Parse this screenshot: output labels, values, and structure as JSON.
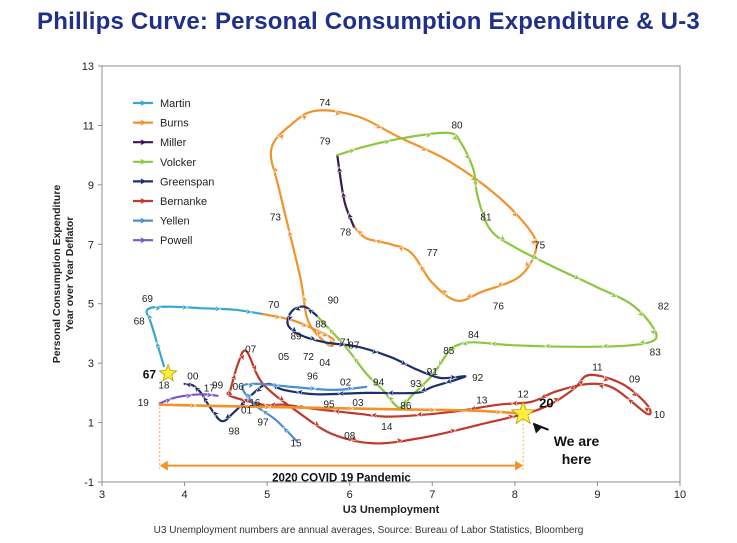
{
  "page": {
    "title": "Phillips Curve: Personal Consumption Expenditure & U-3",
    "source_note": "U3 Unemployment numbers are annual averages, Source: Bureau of Labor Statistics, Bloomberg"
  },
  "chart_data": {
    "type": "line",
    "title": "Phillips Curve: Personal Consumption Expenditure & U-3",
    "xlabel": "U3 Unemployment",
    "ylabel_lines": [
      "Personal Consumption Expenditure",
      "Year over Year Deflator"
    ],
    "xlim": [
      3,
      10
    ],
    "ylim": [
      -1,
      13
    ],
    "xticks": [
      3,
      4,
      5,
      6,
      7,
      8,
      9,
      10
    ],
    "yticks": [
      -1,
      1,
      3,
      5,
      7,
      9,
      11,
      13
    ],
    "legend_position": "top-left",
    "series": [
      {
        "name": "Martin",
        "color": "#3aa6cf",
        "points": [
          [
            3.75,
            2.9
          ],
          [
            3.6,
            4.3
          ],
          [
            3.55,
            4.8
          ],
          [
            3.8,
            4.9
          ],
          [
            4.2,
            4.85
          ],
          [
            4.6,
            4.8
          ],
          [
            4.95,
            4.65
          ]
        ]
      },
      {
        "name": "Burns",
        "color": "#f0932b",
        "points": [
          [
            4.95,
            4.65
          ],
          [
            5.3,
            4.45
          ],
          [
            5.6,
            4.1
          ],
          [
            5.8,
            3.8
          ],
          [
            5.75,
            3.6
          ],
          [
            5.5,
            4.4
          ],
          [
            5.4,
            5.9
          ],
          [
            5.15,
            8.8
          ],
          [
            5.05,
            10.2
          ],
          [
            5.3,
            11.05
          ],
          [
            5.6,
            11.5
          ],
          [
            6.1,
            11.3
          ],
          [
            6.6,
            10.6
          ],
          [
            7.2,
            9.8
          ],
          [
            7.8,
            8.6
          ],
          [
            8.2,
            7.4
          ],
          [
            8.25,
            6.75
          ],
          [
            8.05,
            5.9
          ],
          [
            7.6,
            5.4
          ],
          [
            7.3,
            5.1
          ],
          [
            7.0,
            5.7
          ],
          [
            6.75,
            6.7
          ],
          [
            6.5,
            7.0
          ],
          [
            6.2,
            7.2
          ],
          [
            6.05,
            7.6
          ]
        ]
      },
      {
        "name": "Miller",
        "color": "#3a1a52",
        "points": [
          [
            6.05,
            7.6
          ],
          [
            5.95,
            8.3
          ],
          [
            5.9,
            9.0
          ],
          [
            5.85,
            10.0
          ]
        ]
      },
      {
        "name": "Volcker",
        "color": "#8dc63f",
        "points": [
          [
            5.85,
            10.0
          ],
          [
            6.2,
            10.3
          ],
          [
            6.7,
            10.6
          ],
          [
            7.2,
            10.75
          ],
          [
            7.35,
            10.4
          ],
          [
            7.5,
            9.5
          ],
          [
            7.55,
            8.6
          ],
          [
            7.7,
            7.5
          ],
          [
            8.0,
            6.9
          ],
          [
            8.5,
            6.2
          ],
          [
            9.0,
            5.55
          ],
          [
            9.4,
            5.0
          ],
          [
            9.65,
            4.3
          ],
          [
            9.7,
            3.8
          ],
          [
            9.4,
            3.6
          ],
          [
            8.8,
            3.55
          ],
          [
            8.0,
            3.6
          ],
          [
            7.5,
            3.7
          ],
          [
            7.3,
            3.6
          ],
          [
            7.2,
            3.4
          ],
          [
            7.0,
            2.6
          ],
          [
            6.75,
            1.9
          ],
          [
            6.6,
            1.5
          ],
          [
            6.4,
            2.1
          ],
          [
            6.2,
            2.65
          ],
          [
            5.95,
            3.55
          ],
          [
            5.6,
            4.6
          ]
        ]
      },
      {
        "name": "Greenspan",
        "color": "#1c2f6b",
        "points": [
          [
            5.6,
            4.6
          ],
          [
            5.45,
            4.9
          ],
          [
            5.3,
            4.75
          ],
          [
            5.25,
            4.3
          ],
          [
            5.4,
            3.95
          ],
          [
            5.7,
            3.7
          ],
          [
            6.1,
            3.55
          ],
          [
            6.5,
            3.2
          ],
          [
            6.8,
            2.8
          ],
          [
            7.1,
            2.5
          ],
          [
            7.4,
            2.55
          ],
          [
            7.0,
            2.2
          ],
          [
            6.8,
            2.0
          ],
          [
            6.2,
            2.0
          ],
          [
            5.6,
            1.95
          ],
          [
            5.2,
            2.1
          ],
          [
            5.0,
            2.3
          ],
          [
            4.8,
            1.9
          ],
          [
            4.6,
            1.35
          ],
          [
            4.45,
            1.05
          ],
          [
            4.3,
            1.55
          ],
          [
            4.2,
            2.0
          ],
          [
            4.1,
            2.25
          ],
          [
            4.0,
            2.3
          ]
        ]
      },
      {
        "name": "Bernanke",
        "color": "#c0392b",
        "points": [
          [
            4.55,
            2.05
          ],
          [
            4.65,
            3.0
          ],
          [
            4.75,
            3.4
          ],
          [
            4.95,
            2.3
          ],
          [
            5.4,
            1.3
          ],
          [
            5.8,
            0.6
          ],
          [
            6.3,
            0.3
          ],
          [
            6.9,
            0.5
          ],
          [
            7.6,
            0.95
          ],
          [
            8.3,
            1.45
          ],
          [
            8.7,
            2.1
          ],
          [
            8.9,
            2.6
          ],
          [
            9.3,
            2.3
          ],
          [
            9.6,
            1.6
          ],
          [
            9.6,
            1.3
          ],
          [
            9.2,
            2.15
          ],
          [
            8.9,
            2.3
          ],
          [
            8.5,
            2.05
          ],
          [
            8.2,
            1.7
          ],
          [
            7.8,
            1.6
          ],
          [
            7.2,
            1.35
          ],
          [
            6.5,
            1.2
          ],
          [
            6.1,
            1.3
          ],
          [
            5.6,
            1.45
          ],
          [
            5.2,
            1.6
          ],
          [
            4.95,
            1.6
          ],
          [
            4.55,
            1.9
          ],
          [
            4.55,
            2.05
          ]
        ]
      },
      {
        "name": "Yellen",
        "color": "#4a8fd1",
        "points": [
          [
            5.35,
            0.4
          ],
          [
            5.1,
            1.1
          ],
          [
            4.85,
            1.6
          ],
          [
            4.7,
            2.2
          ],
          [
            4.9,
            2.3
          ],
          [
            5.3,
            2.2
          ],
          [
            5.8,
            2.1
          ],
          [
            6.2,
            2.2
          ]
        ]
      },
      {
        "name": "Powell",
        "color": "#7e57c2",
        "points": [
          [
            3.7,
            1.65
          ],
          [
            3.9,
            1.85
          ],
          [
            4.2,
            1.95
          ],
          [
            4.4,
            1.9
          ]
        ]
      },
      {
        "name": "2020 path",
        "color": "#f0932b",
        "points": [
          [
            3.7,
            1.6
          ],
          [
            4.5,
            1.55
          ],
          [
            5.5,
            1.5
          ],
          [
            6.5,
            1.45
          ],
          [
            7.5,
            1.4
          ],
          [
            8.1,
            1.3
          ]
        ]
      }
    ],
    "point_labels": [
      {
        "text": "69",
        "x": 3.55,
        "y": 5.05
      },
      {
        "text": "68",
        "x": 3.45,
        "y": 4.3
      },
      {
        "text": "70",
        "x": 5.08,
        "y": 4.85
      },
      {
        "text": "71",
        "x": 5.95,
        "y": 3.6
      },
      {
        "text": "72",
        "x": 5.5,
        "y": 3.1
      },
      {
        "text": "73",
        "x": 5.1,
        "y": 7.8
      },
      {
        "text": "74",
        "x": 5.7,
        "y": 11.65
      },
      {
        "text": "75",
        "x": 8.3,
        "y": 6.85
      },
      {
        "text": "76",
        "x": 7.8,
        "y": 4.8
      },
      {
        "text": "77",
        "x": 7.0,
        "y": 6.6
      },
      {
        "text": "78",
        "x": 5.95,
        "y": 7.3
      },
      {
        "text": "79",
        "x": 5.7,
        "y": 10.35
      },
      {
        "text": "80",
        "x": 7.3,
        "y": 10.9
      },
      {
        "text": "81",
        "x": 7.65,
        "y": 7.8
      },
      {
        "text": "82",
        "x": 9.8,
        "y": 4.8
      },
      {
        "text": "83",
        "x": 9.7,
        "y": 3.25
      },
      {
        "text": "84",
        "x": 7.5,
        "y": 3.85
      },
      {
        "text": "85",
        "x": 7.2,
        "y": 3.3
      },
      {
        "text": "86",
        "x": 6.68,
        "y": 1.45
      },
      {
        "text": "87",
        "x": 6.05,
        "y": 3.5
      },
      {
        "text": "88",
        "x": 5.65,
        "y": 4.2
      },
      {
        "text": "89",
        "x": 5.35,
        "y": 3.8
      },
      {
        "text": "90",
        "x": 5.8,
        "y": 5.0
      },
      {
        "text": "91",
        "x": 7.0,
        "y": 2.6
      },
      {
        "text": "92",
        "x": 7.55,
        "y": 2.4
      },
      {
        "text": "93",
        "x": 6.8,
        "y": 2.2
      },
      {
        "text": "94",
        "x": 6.35,
        "y": 2.25
      },
      {
        "text": "95",
        "x": 5.75,
        "y": 1.5
      },
      {
        "text": "96",
        "x": 5.55,
        "y": 2.45
      },
      {
        "text": "97",
        "x": 4.95,
        "y": 0.9
      },
      {
        "text": "98",
        "x": 4.6,
        "y": 0.6
      },
      {
        "text": "99",
        "x": 4.4,
        "y": 2.15
      },
      {
        "text": "00",
        "x": 4.1,
        "y": 2.45
      },
      {
        "text": "01",
        "x": 4.75,
        "y": 1.3
      },
      {
        "text": "02",
        "x": 5.95,
        "y": 2.25
      },
      {
        "text": "03",
        "x": 6.1,
        "y": 1.55
      },
      {
        "text": "04",
        "x": 5.7,
        "y": 2.9
      },
      {
        "text": "05",
        "x": 5.2,
        "y": 3.1
      },
      {
        "text": "06",
        "x": 4.65,
        "y": 2.1
      },
      {
        "text": "07",
        "x": 4.8,
        "y": 3.35
      },
      {
        "text": "08",
        "x": 6.0,
        "y": 0.45
      },
      {
        "text": "09",
        "x": 9.45,
        "y": 2.35
      },
      {
        "text": "10",
        "x": 9.75,
        "y": 1.15
      },
      {
        "text": "11",
        "x": 9.0,
        "y": 2.75
      },
      {
        "text": "12",
        "x": 8.1,
        "y": 1.85
      },
      {
        "text": "13",
        "x": 7.6,
        "y": 1.65
      },
      {
        "text": "14",
        "x": 6.45,
        "y": 0.75
      },
      {
        "text": "15",
        "x": 5.35,
        "y": 0.2
      },
      {
        "text": "16",
        "x": 4.85,
        "y": 1.55
      },
      {
        "text": "17",
        "x": 4.3,
        "y": 2.05
      },
      {
        "text": "18",
        "x": 3.75,
        "y": 2.15
      },
      {
        "text": "19",
        "x": 3.5,
        "y": 1.55
      }
    ],
    "callouts": {
      "star67": {
        "label": "67",
        "x": 3.8,
        "y": 2.65
      },
      "star20": {
        "label": "20",
        "x": 8.1,
        "y": 1.3
      },
      "we_are_here": {
        "label_line1": "We are",
        "label_line2": "here",
        "x": 8.65,
        "y": -0.05
      },
      "span": {
        "label": "2020 COVID 19 Pandemic",
        "x_start": 3.7,
        "x_end": 8.1,
        "y": -0.45
      }
    }
  }
}
